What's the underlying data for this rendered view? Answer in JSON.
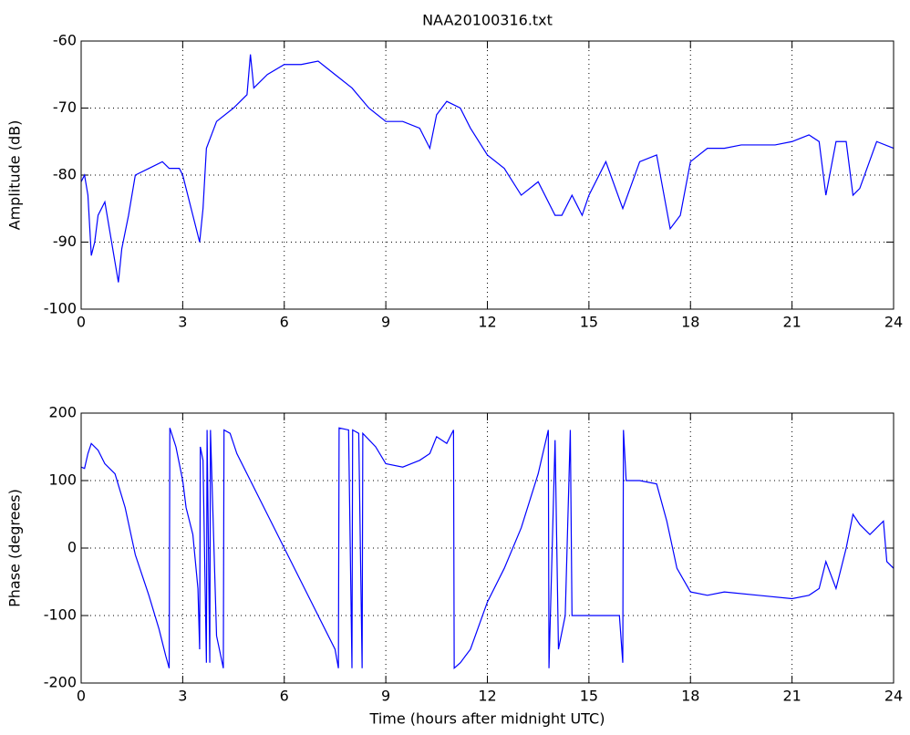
{
  "chart_data": [
    {
      "type": "line",
      "title": "NAA20100316.txt",
      "ylabel": "Amplitude (dB)",
      "grid": true,
      "xlim": [
        0,
        24
      ],
      "xticks": [
        0,
        3,
        6,
        9,
        12,
        15,
        18,
        21,
        24
      ],
      "ylim": [
        -100,
        -60
      ],
      "yticks": [
        -100,
        -90,
        -80,
        -70,
        -60
      ],
      "x": [
        0,
        0.1,
        0.2,
        0.3,
        0.4,
        0.5,
        0.7,
        0.9,
        1.0,
        1.1,
        1.2,
        1.4,
        1.6,
        2.0,
        2.4,
        2.6,
        2.9,
        3.0,
        3.1,
        3.3,
        3.5,
        3.6,
        3.7,
        4.0,
        4.5,
        4.9,
        5.0,
        5.1,
        5.5,
        6.0,
        6.5,
        7.0,
        7.5,
        8.0,
        8.5,
        9.0,
        9.5,
        10.0,
        10.3,
        10.5,
        10.8,
        11.2,
        11.5,
        12.0,
        12.5,
        13.0,
        13.5,
        14.0,
        14.2,
        14.5,
        14.8,
        15.0,
        15.5,
        16.0,
        16.5,
        17.0,
        17.4,
        17.7,
        18.0,
        18.5,
        19.0,
        19.5,
        20.0,
        20.5,
        21.0,
        21.5,
        21.8,
        22.0,
        22.3,
        22.6,
        22.8,
        23.0,
        23.5,
        24.0
      ],
      "series": [
        {
          "color": "#0000ff",
          "values": [
            -81,
            -80,
            -83,
            -92,
            -90,
            -86,
            -84,
            -90,
            -93,
            -96,
            -91,
            -86,
            -80,
            -79,
            -78,
            -79,
            -79,
            -80,
            -82,
            -86,
            -90,
            -85,
            -76,
            -72,
            -70,
            -68,
            -62,
            -67,
            -65,
            -63.5,
            -63.5,
            -63,
            -65,
            -67,
            -70,
            -72,
            -72,
            -73,
            -76,
            -71,
            -69,
            -70,
            -73,
            -77,
            -79,
            -83,
            -81,
            -86,
            -86,
            -83,
            -86,
            -83,
            -78,
            -85,
            -78,
            -77,
            -88,
            -86,
            -78,
            -76,
            -76,
            -75.5,
            -75.5,
            -75.5,
            -75,
            -74,
            -75,
            -83,
            -75,
            -75,
            -83,
            -82,
            -75,
            -76
          ]
        }
      ]
    },
    {
      "type": "line",
      "ylabel": "Phase (degrees)",
      "xlabel": "Time (hours after midnight UTC)",
      "grid": true,
      "xlim": [
        0,
        24
      ],
      "xticks": [
        0,
        3,
        6,
        9,
        12,
        15,
        18,
        21,
        24
      ],
      "ylim": [
        -200,
        200
      ],
      "yticks": [
        -200,
        -100,
        0,
        100,
        200
      ],
      "x": [
        0,
        0.1,
        0.2,
        0.3,
        0.5,
        0.7,
        1.0,
        1.3,
        1.6,
        2.0,
        2.3,
        2.5,
        2.6,
        2.62,
        2.8,
        3.0,
        3.1,
        3.3,
        3.45,
        3.5,
        3.52,
        3.6,
        3.7,
        3.72,
        3.8,
        3.82,
        4.0,
        4.2,
        4.22,
        4.4,
        4.6,
        5.0,
        5.5,
        6.0,
        6.5,
        7.0,
        7.5,
        7.6,
        7.62,
        7.9,
        8.0,
        8.02,
        8.2,
        8.3,
        8.32,
        8.7,
        9.0,
        9.5,
        10.0,
        10.3,
        10.5,
        10.8,
        11.0,
        11.02,
        11.2,
        11.5,
        12.0,
        12.5,
        13.0,
        13.5,
        13.8,
        13.82,
        14.0,
        14.1,
        14.3,
        14.45,
        14.5,
        15.0,
        15.5,
        15.9,
        16.0,
        16.02,
        16.1,
        16.5,
        17.0,
        17.3,
        17.6,
        18.0,
        18.5,
        19.0,
        20.0,
        21.0,
        21.5,
        21.8,
        22.0,
        22.3,
        22.6,
        22.8,
        23.0,
        23.3,
        23.7,
        23.8,
        24.0
      ],
      "series": [
        {
          "color": "#0000ff",
          "values": [
            120,
            118,
            140,
            155,
            145,
            125,
            110,
            60,
            -10,
            -70,
            -120,
            -160,
            -178,
            178,
            150,
            100,
            60,
            20,
            -60,
            -150,
            150,
            130,
            -170,
            175,
            -170,
            175,
            -130,
            -178,
            175,
            170,
            140,
            100,
            50,
            0,
            -50,
            -100,
            -150,
            -178,
            178,
            175,
            -178,
            175,
            170,
            -178,
            170,
            150,
            125,
            120,
            130,
            140,
            165,
            155,
            175,
            -178,
            -170,
            -150,
            -80,
            -30,
            30,
            110,
            175,
            -178,
            160,
            -150,
            -100,
            175,
            -100,
            -100,
            -100,
            -100,
            -170,
            175,
            100,
            100,
            95,
            40,
            -30,
            -65,
            -70,
            -65,
            -70,
            -75,
            -70,
            -60,
            -20,
            -60,
            0,
            50,
            35,
            20,
            40,
            -20,
            -30
          ]
        }
      ]
    }
  ]
}
